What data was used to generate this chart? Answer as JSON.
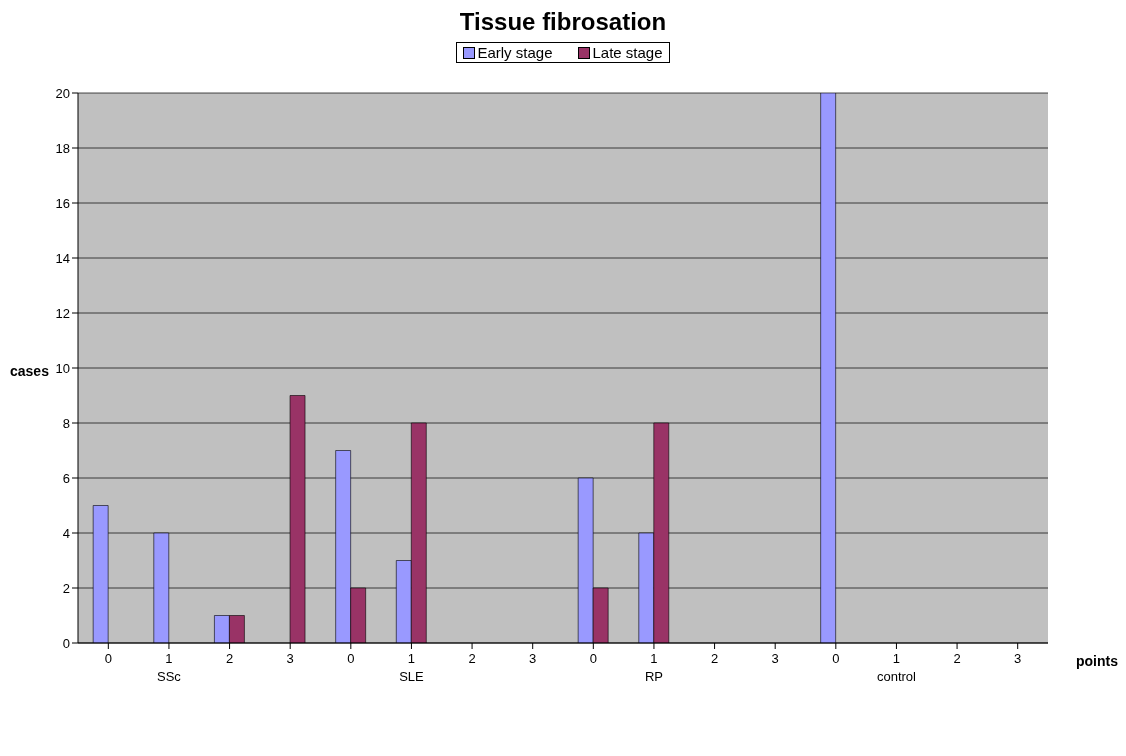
{
  "chart_data": {
    "type": "bar",
    "title": "Tissue fibrosation",
    "xlabel": "points",
    "ylabel": "cases",
    "categories": [
      "0",
      "1",
      "2",
      "3",
      "0",
      "1",
      "2",
      "3",
      "0",
      "1",
      "2",
      "3",
      "0",
      "1",
      "2",
      "3"
    ],
    "series": [
      {
        "name": "Early stage",
        "color": "#9999ff",
        "values": [
          5,
          4,
          1,
          0,
          7,
          3,
          0,
          0,
          6,
          4,
          0,
          0,
          20,
          0,
          0,
          0
        ]
      },
      {
        "name": "Late stage",
        "color": "#993366",
        "values": [
          0,
          0,
          1,
          9,
          2,
          8,
          0,
          0,
          2,
          8,
          0,
          0,
          0,
          0,
          0,
          0
        ]
      }
    ],
    "ylim": [
      0,
      20
    ],
    "yticks": [
      0,
      2,
      4,
      6,
      8,
      10,
      12,
      14,
      16,
      18,
      20
    ],
    "grid": "y",
    "legend": "top",
    "annotations": [
      "SSc",
      "SLE",
      "RP",
      "control"
    ]
  }
}
